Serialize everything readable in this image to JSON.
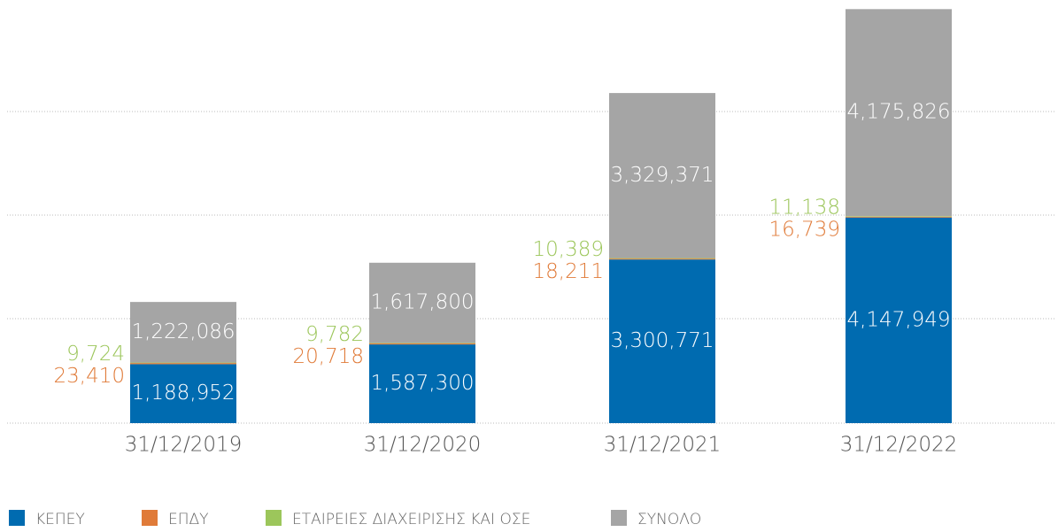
{
  "chart_data": {
    "type": "stacked_bar",
    "categories": [
      "31/12/2019",
      "31/12/2020",
      "31/12/2021",
      "31/12/2022"
    ],
    "series": [
      {
        "name": "ΚΕΠΕΥ",
        "color": "#006bb0",
        "values": [
          1188952,
          1587300,
          3300771,
          4147949
        ],
        "value_labels": [
          "1,188,952",
          "1,587,300",
          "3,300,771",
          "4,147,949"
        ]
      },
      {
        "name": "ΕΠΔΥ",
        "color": "#e07b39",
        "values": [
          23410,
          20718,
          18211,
          16739
        ],
        "value_labels": [
          "23,410",
          "20,718",
          "18,211",
          "16,739"
        ]
      },
      {
        "name": "ΕΤΑΙΡΕΙΕΣ ΔΙΑΧΕΙΡΙΣΗΣ ΚΑΙ ΟΣΕ",
        "color": "#9cc65b",
        "values": [
          9724,
          9782,
          10389,
          11138
        ],
        "value_labels": [
          "9,724",
          "9,782",
          "10,389",
          "11,138"
        ]
      },
      {
        "name": "ΣΥΝΟΛΟ",
        "color": "#a5a5a5",
        "values": [
          1222086,
          1617800,
          3329371,
          4175826
        ],
        "value_labels": [
          "1,222,086",
          "1,617,800",
          "3,329,371",
          "4,175,826"
        ]
      }
    ],
    "ylim": [
      0,
      8500000
    ],
    "grid": true
  }
}
